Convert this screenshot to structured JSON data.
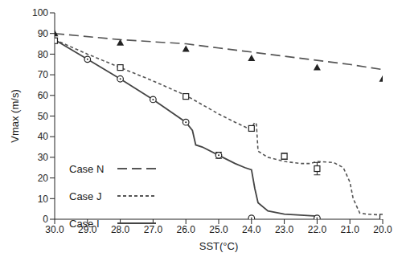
{
  "chart_data": {
    "type": "line",
    "x_label": "SST(°C)",
    "y_label": "Vmax (m/s)",
    "xlim": [
      30,
      20
    ],
    "ylim": [
      0,
      100
    ],
    "xticks": [
      {
        "value": 30,
        "label": "30.0"
      },
      {
        "value": 29,
        "label": "29.0"
      },
      {
        "value": 28,
        "label": "28.0"
      },
      {
        "value": 27,
        "label": "27.0"
      },
      {
        "value": 26,
        "label": "26.0"
      },
      {
        "value": 25,
        "label": "25.0"
      },
      {
        "value": 24,
        "label": "24.0"
      },
      {
        "value": 23,
        "label": "23.0"
      },
      {
        "value": 22,
        "label": "22.0"
      },
      {
        "value": 21,
        "label": "21.0"
      },
      {
        "value": 20,
        "label": "20.0"
      }
    ],
    "yticks": [
      0,
      10,
      20,
      30,
      40,
      50,
      60,
      70,
      80,
      90,
      100
    ],
    "grid": false,
    "legend": "left",
    "series": [
      {
        "name": "Case N",
        "color": "#555555",
        "line_style": "longdash",
        "marker": "triangle",
        "x": [
          30,
          28,
          26,
          25,
          24,
          23,
          22,
          21,
          20
        ],
        "values": [
          90,
          87,
          85,
          83,
          81,
          79,
          77,
          75,
          72.5
        ],
        "marker_x": [
          30,
          28,
          26,
          24,
          22,
          20
        ],
        "marker_values": [
          90,
          85.5,
          82.5,
          78,
          73.5,
          68
        ],
        "error": [
          null,
          null,
          null,
          null,
          null,
          null
        ]
      },
      {
        "name": "Case J",
        "color": "#555555",
        "line_style": "dash",
        "marker": "square",
        "x": [
          30,
          29,
          28,
          27,
          26,
          25.5,
          25,
          24.5,
          24.1,
          24,
          23.9,
          23.85,
          23.8,
          23.5,
          23,
          22.5,
          22.2,
          22,
          21.5,
          21.2,
          21,
          20.9,
          20.7,
          20.5,
          20
        ],
        "values": [
          87,
          80,
          73.5,
          67,
          60,
          55.5,
          51,
          47,
          44,
          44,
          47,
          46,
          33,
          30,
          28,
          27,
          27,
          28,
          27.5,
          25,
          18,
          10,
          3,
          2.5,
          2
        ],
        "marker_x": [
          30,
          28,
          26,
          24,
          23,
          22,
          20
        ],
        "marker_values": [
          86.5,
          73.5,
          59.5,
          44,
          30.5,
          24.5,
          1
        ],
        "error": [
          null,
          null,
          null,
          null,
          1.5,
          3,
          null
        ]
      },
      {
        "name": "Case I",
        "color": "#444444",
        "line_style": "solid",
        "marker": "circle",
        "x": [
          30,
          29,
          28,
          27,
          26,
          25.8,
          25.7,
          25.5,
          25,
          24.5,
          24.2,
          24,
          23.9,
          23.8,
          23.5,
          23,
          22.5,
          22
        ],
        "values": [
          87,
          77.5,
          68,
          58,
          47,
          43,
          36,
          35,
          31,
          27,
          25,
          24,
          15,
          8,
          4,
          2.5,
          2,
          1.5
        ],
        "marker_x": [
          29,
          28,
          27,
          26,
          25,
          24,
          22
        ],
        "marker_values": [
          77.5,
          68,
          58,
          47,
          31,
          0.5,
          0.5
        ],
        "error": [
          null,
          null,
          null,
          null,
          1.5,
          null,
          null
        ]
      }
    ]
  }
}
